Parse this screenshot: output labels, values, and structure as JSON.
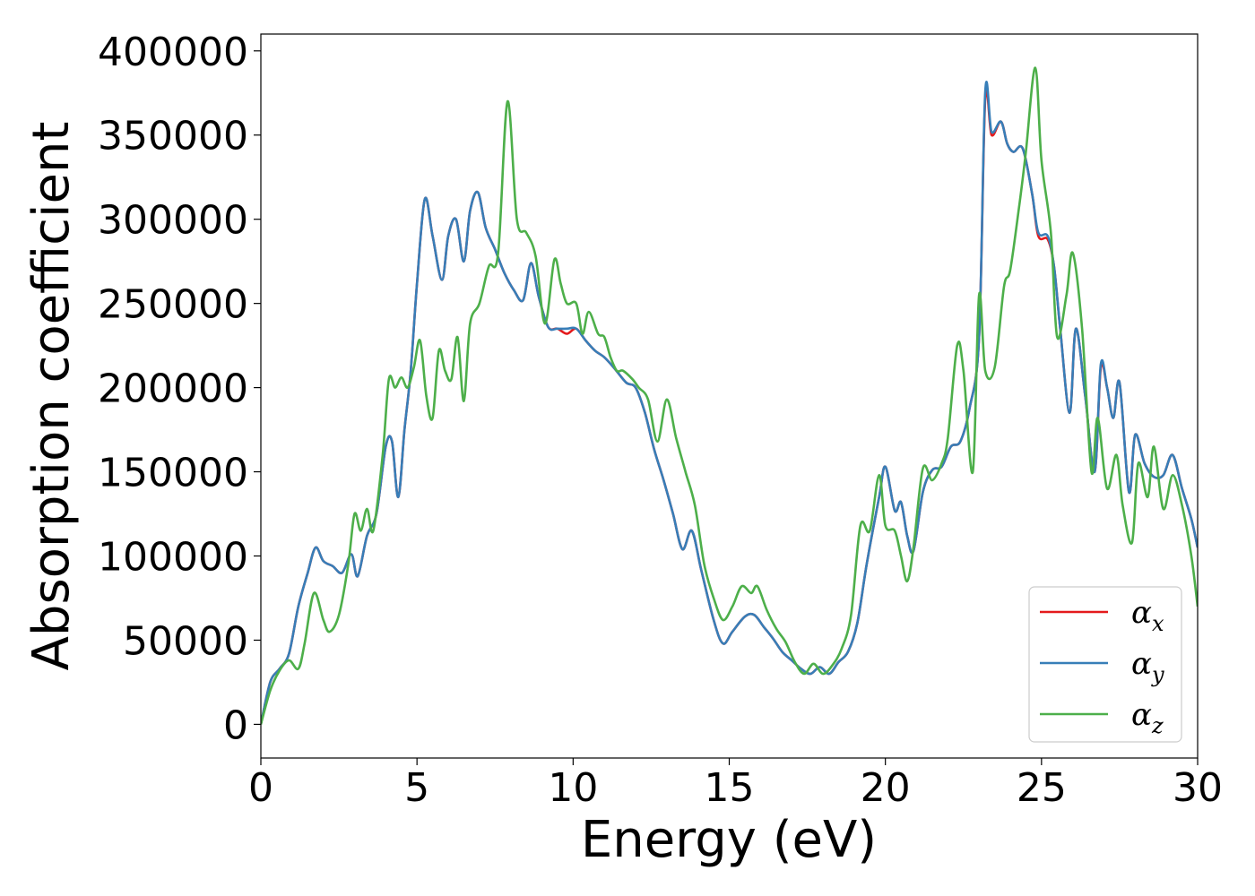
{
  "chart_data": {
    "type": "line",
    "title": "",
    "xlabel": "Energy (eV)",
    "ylabel": "Absorption coefficient",
    "xlim": [
      0,
      30
    ],
    "ylim": [
      -20000,
      410000
    ],
    "xticks": [
      0,
      5,
      10,
      15,
      20,
      25,
      30
    ],
    "yticks": [
      0,
      50000,
      100000,
      150000,
      200000,
      250000,
      300000,
      350000,
      400000
    ],
    "grid": false,
    "legend_position": "lower-right",
    "series": [
      {
        "name": "α_x",
        "symbol": "α",
        "sub": "x",
        "color": "#e41a1c",
        "x": [
          0,
          0.3,
          0.6,
          0.9,
          1.2,
          1.5,
          1.75,
          2.0,
          2.3,
          2.6,
          2.9,
          3.1,
          3.4,
          3.7,
          4.0,
          4.2,
          4.4,
          4.6,
          4.8,
          5.0,
          5.25,
          5.5,
          5.8,
          6.0,
          6.25,
          6.5,
          6.7,
          6.95,
          7.2,
          7.5,
          7.8,
          8.1,
          8.4,
          8.65,
          8.9,
          9.2,
          9.5,
          9.8,
          10.1,
          10.4,
          10.7,
          11.0,
          11.3,
          11.7,
          12.0,
          12.3,
          12.6,
          12.9,
          13.2,
          13.5,
          13.8,
          14.1,
          14.5,
          14.8,
          15.1,
          15.5,
          15.8,
          16.1,
          16.4,
          16.7,
          17.0,
          17.3,
          17.6,
          17.9,
          18.2,
          18.5,
          18.8,
          19.1,
          19.4,
          19.8,
          20.0,
          20.3,
          20.5,
          20.7,
          20.9,
          21.2,
          21.5,
          21.8,
          22.1,
          22.4,
          22.7,
          23.0,
          23.2,
          23.4,
          23.7,
          23.9,
          24.1,
          24.4,
          24.7,
          24.9,
          25.2,
          25.4,
          25.6,
          25.9,
          26.1,
          26.4,
          26.7,
          26.9,
          27.1,
          27.3,
          27.5,
          27.8,
          28.0,
          28.3,
          28.6,
          28.9,
          29.2,
          29.5,
          29.8,
          30.0
        ],
        "values": [
          0,
          25000,
          33000,
          42000,
          70000,
          90000,
          105000,
          97000,
          94000,
          90000,
          101000,
          88000,
          112000,
          125000,
          165000,
          168000,
          135000,
          175000,
          210000,
          262000,
          312000,
          290000,
          264000,
          290000,
          300000,
          275000,
          305000,
          316000,
          295000,
          282000,
          268000,
          258000,
          252000,
          274000,
          254000,
          236000,
          235000,
          232000,
          235000,
          228000,
          222000,
          218000,
          212000,
          203000,
          200000,
          185000,
          163000,
          145000,
          125000,
          104000,
          115000,
          92000,
          62000,
          48000,
          55000,
          64000,
          65000,
          58000,
          51000,
          43000,
          38000,
          33000,
          30000,
          34000,
          30000,
          37000,
          43000,
          60000,
          95000,
          135000,
          153000,
          127000,
          132000,
          112000,
          103000,
          138000,
          151000,
          153000,
          165000,
          168000,
          188000,
          230000,
          372000,
          350000,
          358000,
          345000,
          340000,
          342000,
          315000,
          290000,
          288000,
          272000,
          235000,
          185000,
          235000,
          195000,
          150000,
          212000,
          200000,
          182000,
          203000,
          138000,
          172000,
          155000,
          147000,
          148000,
          160000,
          140000,
          122000,
          105000
        ]
      },
      {
        "name": "α_y",
        "symbol": "α",
        "sub": "y",
        "color": "#377eb8",
        "x": [
          0,
          0.3,
          0.6,
          0.9,
          1.2,
          1.5,
          1.75,
          2.0,
          2.3,
          2.6,
          2.9,
          3.1,
          3.4,
          3.7,
          4.0,
          4.2,
          4.4,
          4.6,
          4.8,
          5.0,
          5.25,
          5.5,
          5.8,
          6.0,
          6.25,
          6.5,
          6.7,
          6.95,
          7.2,
          7.5,
          7.8,
          8.1,
          8.4,
          8.65,
          8.9,
          9.2,
          9.5,
          9.8,
          10.1,
          10.4,
          10.7,
          11.0,
          11.3,
          11.7,
          12.0,
          12.3,
          12.6,
          12.9,
          13.2,
          13.5,
          13.8,
          14.1,
          14.5,
          14.8,
          15.1,
          15.5,
          15.8,
          16.1,
          16.4,
          16.7,
          17.0,
          17.3,
          17.6,
          17.9,
          18.2,
          18.5,
          18.8,
          19.1,
          19.4,
          19.8,
          20.0,
          20.3,
          20.5,
          20.7,
          20.9,
          21.2,
          21.5,
          21.8,
          22.1,
          22.4,
          22.7,
          23.0,
          23.2,
          23.4,
          23.7,
          23.9,
          24.1,
          24.4,
          24.7,
          24.9,
          25.2,
          25.4,
          25.6,
          25.9,
          26.1,
          26.4,
          26.7,
          26.9,
          27.1,
          27.3,
          27.5,
          27.8,
          28.0,
          28.3,
          28.6,
          28.9,
          29.2,
          29.5,
          29.8,
          30.0
        ],
        "values": [
          0,
          25000,
          33000,
          42000,
          70000,
          90000,
          105000,
          97000,
          94000,
          90000,
          101000,
          88000,
          112000,
          125000,
          165000,
          168000,
          135000,
          175000,
          210000,
          262000,
          312000,
          290000,
          264000,
          290000,
          300000,
          275000,
          305000,
          316000,
          295000,
          282000,
          268000,
          258000,
          252000,
          274000,
          254000,
          236000,
          235000,
          235000,
          235000,
          228000,
          222000,
          218000,
          212000,
          203000,
          200000,
          185000,
          163000,
          145000,
          125000,
          104000,
          115000,
          92000,
          62000,
          48000,
          55000,
          64000,
          65000,
          58000,
          51000,
          43000,
          38000,
          33000,
          30000,
          34000,
          30000,
          37000,
          43000,
          60000,
          95000,
          135000,
          153000,
          127000,
          132000,
          112000,
          103000,
          138000,
          151000,
          153000,
          165000,
          168000,
          188000,
          230000,
          376000,
          352000,
          358000,
          345000,
          340000,
          342000,
          315000,
          292000,
          290000,
          272000,
          235000,
          185000,
          235000,
          195000,
          150000,
          214000,
          200000,
          182000,
          203000,
          138000,
          172000,
          155000,
          147000,
          148000,
          160000,
          140000,
          122000,
          105000
        ]
      },
      {
        "name": "α_z",
        "symbol": "α",
        "sub": "z",
        "color": "#4daf4a",
        "x": [
          0,
          0.3,
          0.6,
          0.9,
          1.2,
          1.4,
          1.7,
          2.0,
          2.2,
          2.5,
          2.8,
          3.0,
          3.2,
          3.4,
          3.6,
          3.9,
          4.1,
          4.3,
          4.5,
          4.7,
          4.9,
          5.1,
          5.3,
          5.5,
          5.7,
          5.9,
          6.1,
          6.3,
          6.5,
          6.7,
          7.0,
          7.3,
          7.6,
          7.9,
          8.2,
          8.5,
          8.8,
          9.1,
          9.4,
          9.6,
          9.8,
          10.1,
          10.3,
          10.5,
          10.8,
          11.0,
          11.2,
          11.4,
          11.6,
          11.9,
          12.1,
          12.4,
          12.7,
          13.0,
          13.3,
          13.6,
          13.9,
          14.2,
          14.5,
          14.8,
          15.1,
          15.4,
          15.7,
          15.9,
          16.2,
          16.5,
          16.8,
          17.1,
          17.4,
          17.7,
          18.0,
          18.3,
          18.6,
          18.9,
          19.2,
          19.5,
          19.8,
          20.0,
          20.3,
          20.5,
          20.7,
          20.9,
          21.2,
          21.5,
          21.8,
          22.0,
          22.3,
          22.5,
          22.8,
          23.0,
          23.2,
          23.5,
          23.8,
          24.0,
          24.3,
          24.5,
          24.8,
          25.0,
          25.3,
          25.5,
          25.8,
          26.0,
          26.3,
          26.6,
          26.8,
          27.1,
          27.4,
          27.6,
          27.9,
          28.1,
          28.4,
          28.6,
          28.9,
          29.2,
          29.5,
          29.8,
          30.0
        ],
        "values": [
          0,
          20000,
          32000,
          38000,
          33000,
          48000,
          78000,
          62000,
          55000,
          65000,
          95000,
          125000,
          115000,
          128000,
          115000,
          160000,
          205000,
          200000,
          206000,
          200000,
          212000,
          228000,
          195000,
          182000,
          222000,
          210000,
          205000,
          230000,
          192000,
          238000,
          250000,
          272000,
          280000,
          370000,
          300000,
          292000,
          278000,
          238000,
          276000,
          262000,
          250000,
          250000,
          232000,
          245000,
          232000,
          230000,
          218000,
          210000,
          210000,
          205000,
          200000,
          193000,
          168000,
          193000,
          170000,
          150000,
          130000,
          95000,
          75000,
          62000,
          70000,
          82000,
          78000,
          82000,
          68000,
          57000,
          49000,
          37000,
          30000,
          36000,
          30000,
          35000,
          45000,
          65000,
          118000,
          115000,
          148000,
          118000,
          115000,
          100000,
          85000,
          105000,
          152000,
          145000,
          155000,
          170000,
          225000,
          210000,
          150000,
          255000,
          210000,
          212000,
          260000,
          270000,
          310000,
          340000,
          390000,
          335000,
          292000,
          230000,
          255000,
          280000,
          235000,
          150000,
          182000,
          140000,
          160000,
          130000,
          108000,
          155000,
          135000,
          165000,
          128000,
          148000,
          130000,
          100000,
          70000
        ]
      }
    ]
  }
}
